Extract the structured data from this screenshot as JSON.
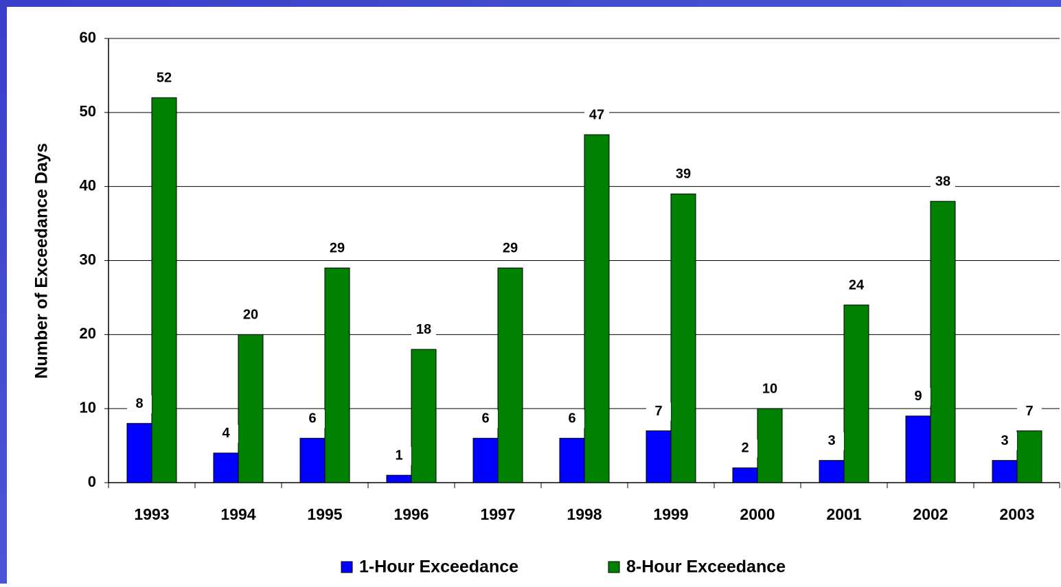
{
  "chart_data": {
    "type": "bar",
    "y_label": "Number of Exceedance Days",
    "categories": [
      "1993",
      "1994",
      "1995",
      "1996",
      "1997",
      "1998",
      "1999",
      "2000",
      "2001",
      "2002",
      "2003"
    ],
    "series": [
      {
        "name": "1-Hour Exceedance",
        "color": "#0000ff",
        "values": [
          8,
          4,
          6,
          1,
          6,
          6,
          7,
          2,
          3,
          9,
          3
        ]
      },
      {
        "name": "8-Hour Exceedance",
        "color": "#008000",
        "values": [
          52,
          20,
          29,
          18,
          29,
          47,
          39,
          10,
          24,
          38,
          7
        ]
      }
    ],
    "ylim": [
      0,
      60
    ],
    "yticks": [
      0,
      10,
      20,
      30,
      40,
      50,
      60
    ],
    "grid": true,
    "legend": "bottom"
  }
}
